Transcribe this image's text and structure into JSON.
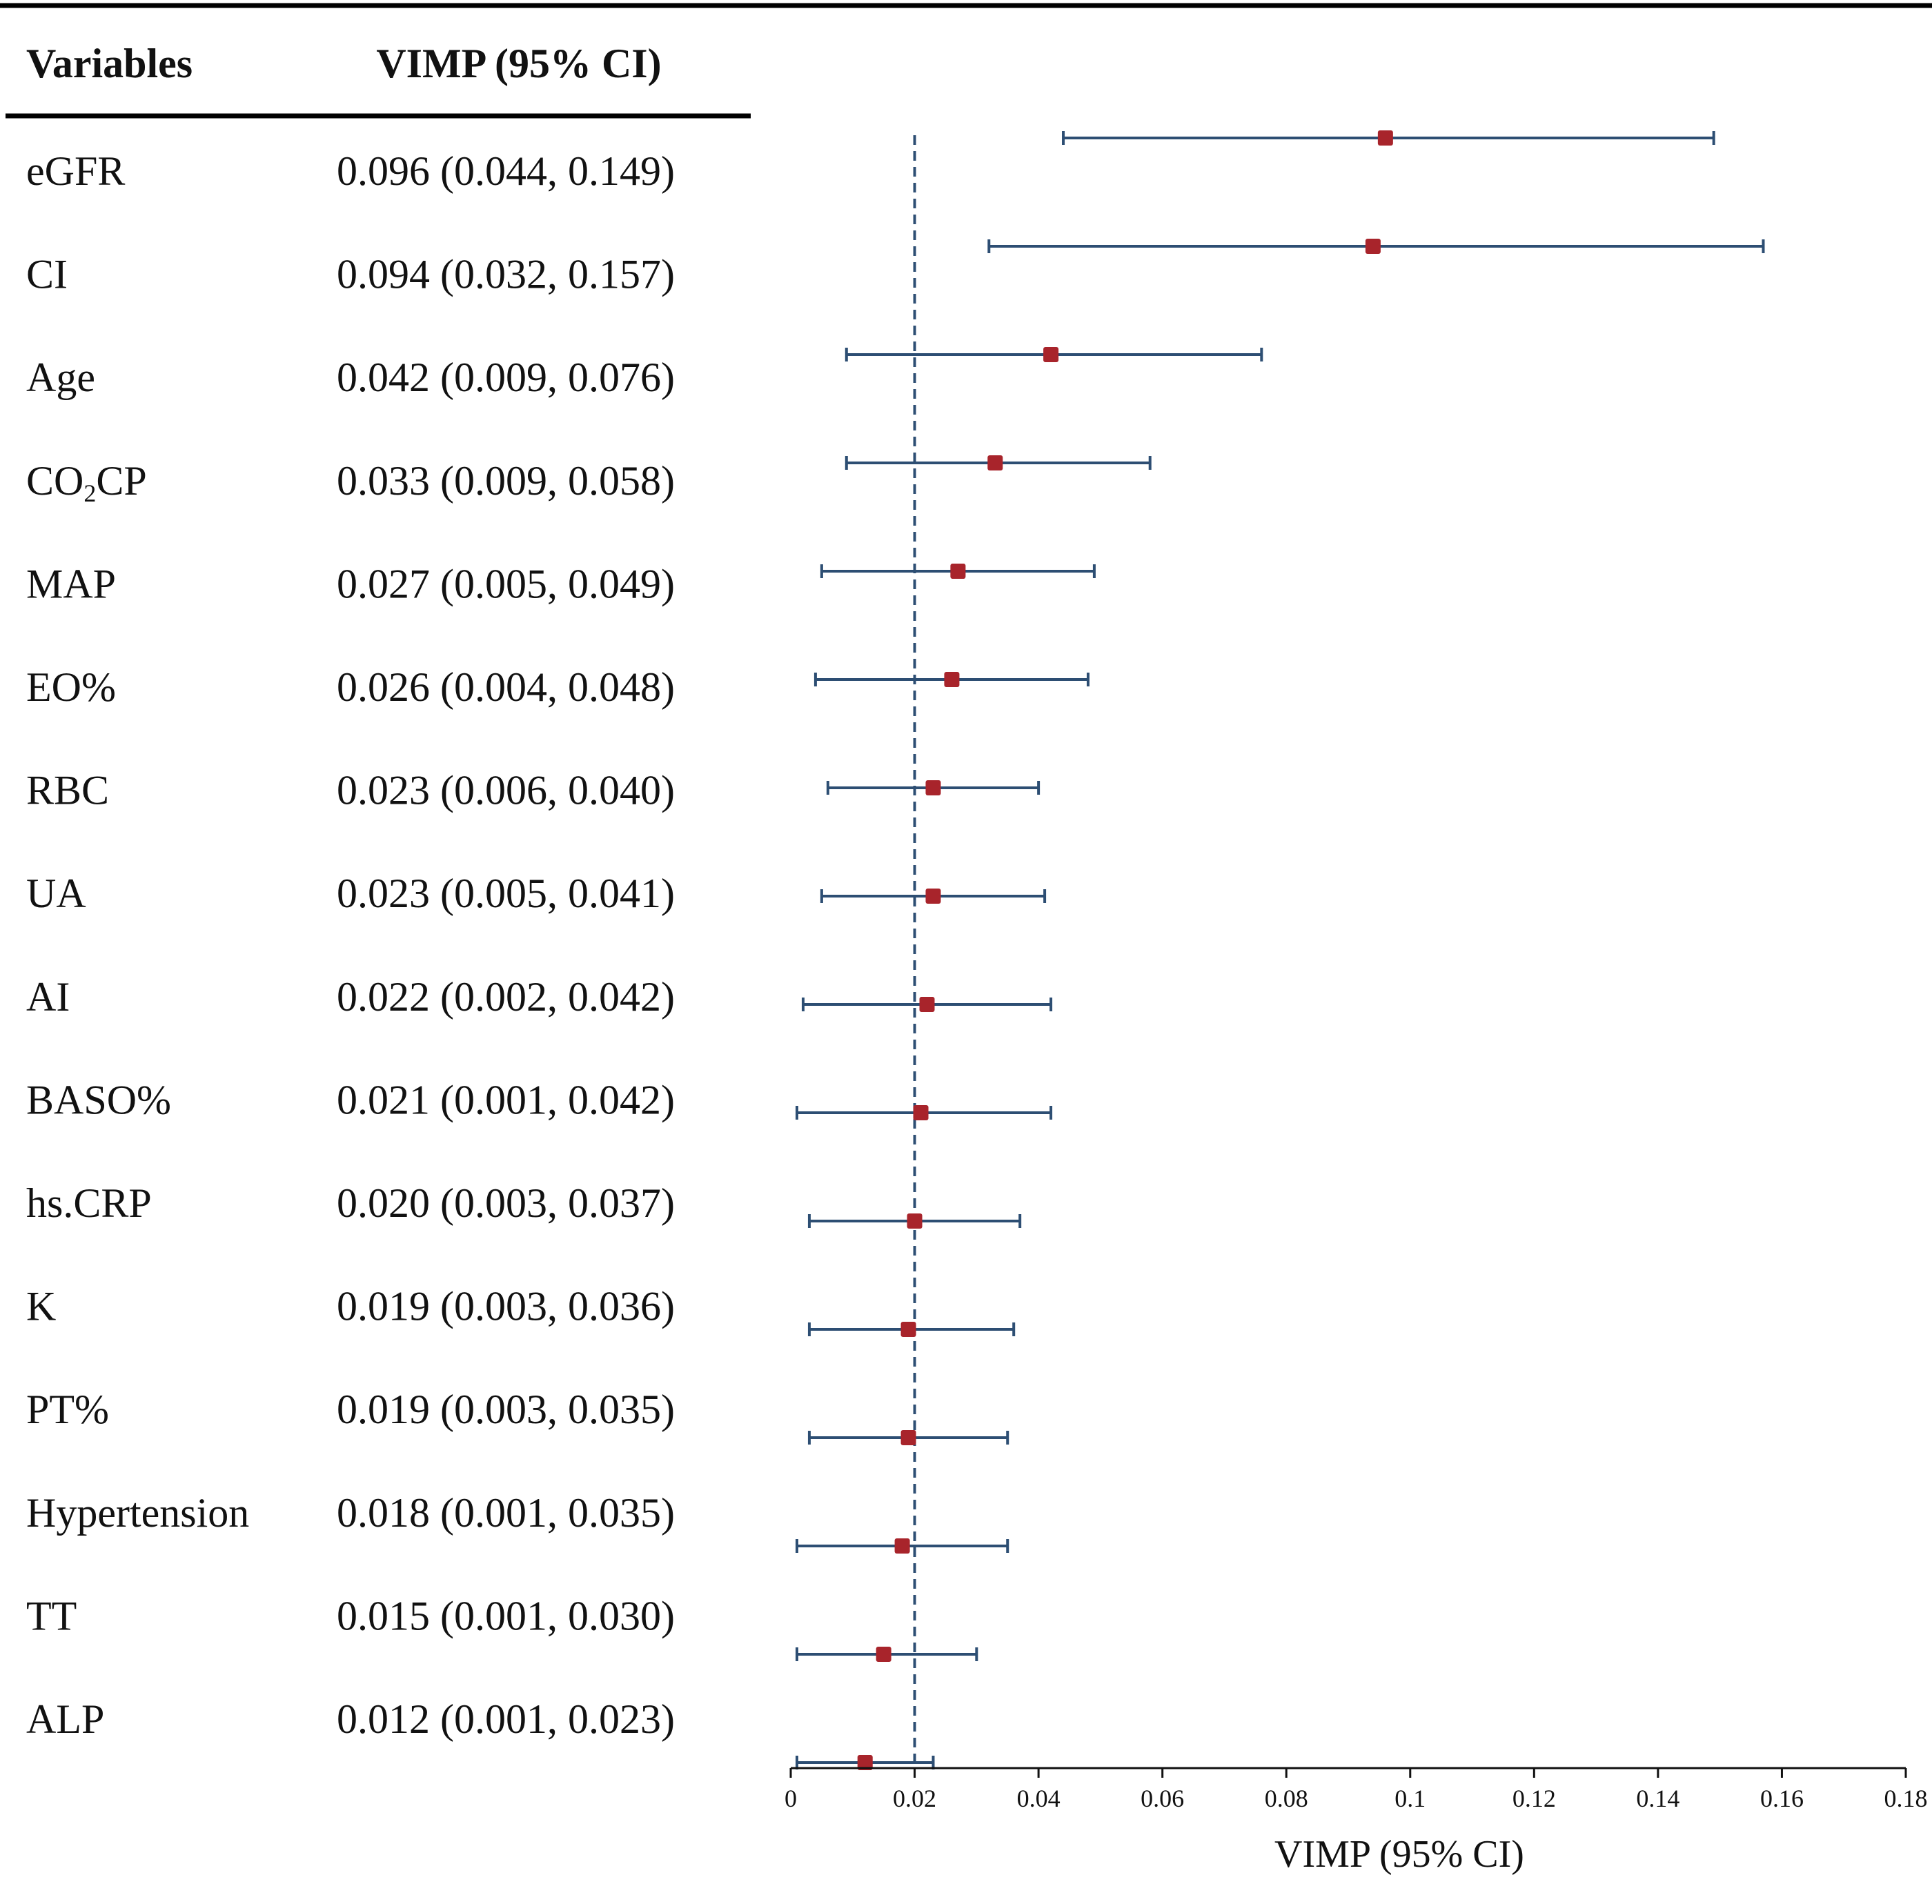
{
  "chart_data": {
    "type": "forest",
    "headers": {
      "variables": "Variables",
      "estimate": "VIMP (95% CI)"
    },
    "xlabel": "VIMP (95% CI)",
    "xlim": [
      0,
      0.18
    ],
    "xticks": [
      0,
      0.02,
      0.04,
      0.06,
      0.08,
      0.1,
      0.12,
      0.14,
      0.16,
      0.18
    ],
    "xtick_labels": [
      "0",
      "0.02",
      "0.04",
      "0.06",
      "0.08",
      "0.1",
      "0.12",
      "0.14",
      "0.16",
      "0.18"
    ],
    "reference_line": 0.02,
    "rows": [
      {
        "variable": "eGFR",
        "label": "0.096 (0.044, 0.149)",
        "estimate": 0.096,
        "lower": 0.044,
        "upper": 0.149
      },
      {
        "variable": "CI",
        "label": "0.094 (0.032, 0.157)",
        "estimate": 0.094,
        "lower": 0.032,
        "upper": 0.157
      },
      {
        "variable": "Age",
        "label": "0.042 (0.009, 0.076)",
        "estimate": 0.042,
        "lower": 0.009,
        "upper": 0.076
      },
      {
        "variable": "CO2CP",
        "label": "0.033 (0.009, 0.058)",
        "estimate": 0.033,
        "lower": 0.009,
        "upper": 0.058
      },
      {
        "variable": "MAP",
        "label": "0.027 (0.005, 0.049)",
        "estimate": 0.027,
        "lower": 0.005,
        "upper": 0.049
      },
      {
        "variable": "EO%",
        "label": "0.026 (0.004, 0.048)",
        "estimate": 0.026,
        "lower": 0.004,
        "upper": 0.048
      },
      {
        "variable": "RBC",
        "label": "0.023 (0.006, 0.040)",
        "estimate": 0.023,
        "lower": 0.006,
        "upper": 0.04
      },
      {
        "variable": "UA",
        "label": "0.023 (0.005, 0.041)",
        "estimate": 0.023,
        "lower": 0.005,
        "upper": 0.041
      },
      {
        "variable": "AI",
        "label": "0.022 (0.002, 0.042)",
        "estimate": 0.022,
        "lower": 0.002,
        "upper": 0.042
      },
      {
        "variable": "BASO%",
        "label": "0.021 (0.001, 0.042)",
        "estimate": 0.021,
        "lower": 0.001,
        "upper": 0.042
      },
      {
        "variable": "hs.CRP",
        "label": "0.020 (0.003, 0.037)",
        "estimate": 0.02,
        "lower": 0.003,
        "upper": 0.037
      },
      {
        "variable": "K",
        "label": "0.019 (0.003, 0.036)",
        "estimate": 0.019,
        "lower": 0.003,
        "upper": 0.036
      },
      {
        "variable": "PT%",
        "label": "0.019 (0.003, 0.035)",
        "estimate": 0.019,
        "lower": 0.003,
        "upper": 0.035
      },
      {
        "variable": "Hypertension",
        "label": "0.018 (0.001, 0.035)",
        "estimate": 0.018,
        "lower": 0.001,
        "upper": 0.035
      },
      {
        "variable": "TT",
        "label": "0.015 (0.001, 0.030)",
        "estimate": 0.015,
        "lower": 0.001,
        "upper": 0.03
      },
      {
        "variable": "ALP",
        "label": "0.012 (0.001, 0.023)",
        "estimate": 0.012,
        "lower": 0.001,
        "upper": 0.023
      }
    ],
    "colors": {
      "ci_line": "#2d4e73",
      "point": "#a8242b",
      "reference_line": "#2d4e73",
      "axis": "#111111",
      "rule": "#000000"
    }
  }
}
